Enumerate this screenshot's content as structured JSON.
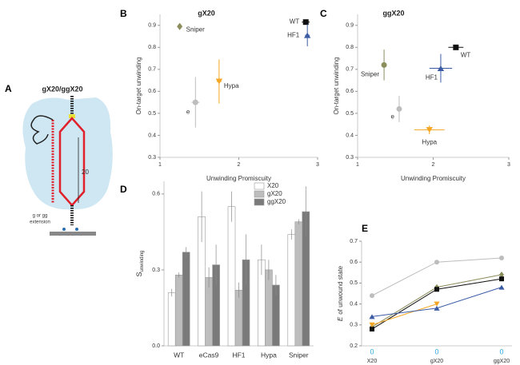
{
  "diagram": {
    "label": "A",
    "title": "gX20/ggX20",
    "length": "20",
    "extension": [
      "g or gg",
      "extension"
    ]
  },
  "chart_data": [
    {
      "type": "scatter",
      "panel": "B",
      "title": "gX20",
      "xlabel": "Unwinding Promiscuity",
      "ylabel": "On-target unwinding",
      "xlim": [
        1,
        3
      ],
      "xticks": [
        1,
        2,
        3
      ],
      "ylim": [
        0.3,
        0.95
      ],
      "yticks": [
        0.3,
        0.4,
        0.5,
        0.6,
        0.7,
        0.8,
        0.9
      ],
      "series": [
        {
          "name": "Sniper",
          "color": "#8b8d5c",
          "marker": "diamond",
          "x": [
            1.25
          ],
          "values": [
            0.895
          ]
        },
        {
          "name": "e",
          "color": "#bdbdbd",
          "marker": "circle",
          "x": [
            1.45
          ],
          "values": [
            0.55
          ],
          "xerr": [
            0.05
          ],
          "yerr": [
            0.115
          ]
        },
        {
          "name": "Hypa",
          "color": "#f5a623",
          "marker": "triangle-down",
          "x": [
            1.75
          ],
          "values": [
            0.645
          ],
          "xerr": [
            0.03
          ],
          "yerr": [
            0.1
          ]
        },
        {
          "name": "WT",
          "color": "#111111",
          "marker": "square",
          "x": [
            2.85
          ],
          "values": [
            0.915
          ],
          "xerr": [
            0.05
          ]
        },
        {
          "name": "HF1",
          "color": "#3b5ba5",
          "marker": "triangle-up",
          "x": [
            2.87
          ],
          "values": [
            0.855
          ],
          "xerr": [
            0.03
          ],
          "yerr": [
            0.05
          ]
        }
      ]
    },
    {
      "type": "scatter",
      "panel": "C",
      "title": "ggX20",
      "xlabel": "Unwinding Promiscuity",
      "ylabel": "On-target unwinding",
      "xlim": [
        1,
        3
      ],
      "xticks": [
        1,
        2,
        3
      ],
      "ylim": [
        0.3,
        0.95
      ],
      "yticks": [
        0.3,
        0.4,
        0.5,
        0.6,
        0.7,
        0.8,
        0.9
      ],
      "series": [
        {
          "name": "Sniper",
          "color": "#8b8d5c",
          "marker": "circle",
          "x": [
            1.35
          ],
          "values": [
            0.72
          ],
          "xerr": [
            0.03
          ],
          "yerr": [
            0.07
          ]
        },
        {
          "name": "e",
          "color": "#bdbdbd",
          "marker": "circle",
          "x": [
            1.55
          ],
          "values": [
            0.52
          ],
          "xerr": [
            0.03
          ],
          "yerr": [
            0.06
          ]
        },
        {
          "name": "Hypa",
          "color": "#f5a623",
          "marker": "triangle-down",
          "x": [
            1.95
          ],
          "values": [
            0.425
          ],
          "xerr": [
            0.2
          ],
          "yerr": [
            0.02
          ]
        },
        {
          "name": "WT",
          "color": "#111111",
          "marker": "square",
          "x": [
            2.3
          ],
          "values": [
            0.8
          ],
          "xerr": [
            0.1
          ]
        },
        {
          "name": "HF1",
          "color": "#3b5ba5",
          "marker": "triangle-up",
          "x": [
            2.1
          ],
          "values": [
            0.705
          ],
          "xerr": [
            0.15
          ],
          "yerr": [
            0.065
          ]
        }
      ]
    },
    {
      "type": "bar",
      "panel": "D",
      "ylabel": "S",
      "ylabel_sub": "unwinding",
      "legend": "top-right",
      "ylim": [
        0,
        0.65
      ],
      "yticks": [
        {
          "value": 0,
          "label": "0.0"
        },
        0.3,
        0.6
      ],
      "categories": [
        "WT",
        "eCas9",
        "HF1",
        "Hypa",
        "Sniper"
      ],
      "series": [
        {
          "name": "X20",
          "color": "#ffffff",
          "values": [
            0.21,
            0.51,
            0.55,
            0.34,
            0.44
          ],
          "err": [
            0.015,
            0.1,
            0.06,
            0.06,
            0.02
          ]
        },
        {
          "name": "gX20",
          "color": "#bdbdbd",
          "values": [
            0.28,
            0.27,
            0.22,
            0.3,
            0.49
          ],
          "err": [
            0.01,
            0.04,
            0.03,
            0.04,
            0.01
          ]
        },
        {
          "name": "ggX20",
          "color": "#7a7a7a",
          "values": [
            0.37,
            0.32,
            0.34,
            0.24,
            0.53
          ],
          "err": [
            0.02,
            0.08,
            0.1,
            0.04,
            0.1
          ]
        }
      ]
    },
    {
      "type": "line",
      "panel": "E",
      "ylabel_symbol": "E",
      "ylabel": "of unwound state",
      "ylim": [
        0.2,
        0.7
      ],
      "yticks": [
        0.2,
        0.3,
        0.4,
        0.5,
        0.6,
        0.7
      ],
      "categories": [
        "X20",
        "gX20",
        "ggX20"
      ],
      "category_notes": [
        "0",
        "0",
        "0"
      ],
      "note_color": "#29a8e0",
      "series": [
        {
          "color": "#bdbdbd",
          "marker": "circle",
          "values": [
            0.44,
            0.6,
            0.62
          ]
        },
        {
          "color": "#8b8d5c",
          "marker": "diamond",
          "values": [
            0.29,
            0.48,
            0.54
          ]
        },
        {
          "color": "#111111",
          "marker": "square",
          "values": [
            0.28,
            0.47,
            0.52
          ]
        },
        {
          "color": "#f5a623",
          "marker": "triangle-down",
          "values": [
            0.3,
            0.4,
            null
          ]
        },
        {
          "color": "#3b5ba5",
          "marker": "triangle-up",
          "values": [
            0.34,
            0.38,
            0.48
          ]
        }
      ]
    }
  ]
}
